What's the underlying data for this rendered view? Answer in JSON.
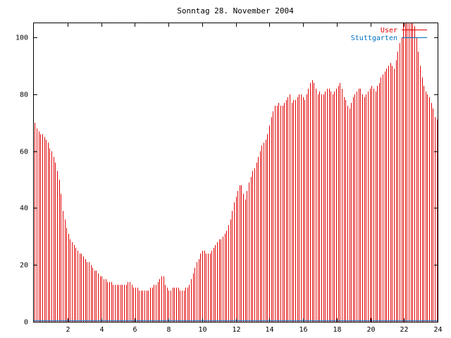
{
  "chart_data": {
    "type": "bar",
    "title": "Sonntag 28. November 2004",
    "xlabel": "",
    "ylabel": "",
    "xlim": [
      0,
      24
    ],
    "ylim": [
      0,
      105
    ],
    "xticks": [
      2,
      4,
      6,
      8,
      10,
      12,
      14,
      16,
      18,
      20,
      22,
      24
    ],
    "yticks": [
      0,
      20,
      40,
      60,
      80,
      100
    ],
    "grid": false,
    "legend_position": "top-right",
    "series": [
      {
        "name": "User",
        "color": "#e00000",
        "sample_interval_hours": 0.0833,
        "values": [
          70,
          68,
          67,
          66,
          66,
          65,
          64,
          63,
          61,
          60,
          58,
          56,
          53,
          50,
          45,
          39,
          36,
          33,
          31,
          29,
          28,
          27,
          26,
          25,
          24,
          24,
          23,
          22,
          21,
          21,
          20,
          19,
          18,
          18,
          17,
          16,
          16,
          15,
          15,
          14,
          14,
          14,
          13,
          13,
          13,
          13,
          13,
          13,
          13,
          13,
          14,
          14,
          13,
          12,
          12,
          12,
          11,
          11,
          11,
          11,
          11,
          11,
          12,
          12,
          13,
          13,
          14,
          15,
          16,
          16,
          13,
          12,
          11,
          11,
          12,
          12,
          12,
          12,
          11,
          11,
          11,
          12,
          12,
          13,
          15,
          17,
          19,
          21,
          22,
          24,
          25,
          25,
          24,
          24,
          24,
          25,
          26,
          27,
          28,
          29,
          29,
          30,
          31,
          32,
          34,
          36,
          39,
          42,
          44,
          46,
          48,
          48,
          45,
          43,
          46,
          49,
          51,
          53,
          54,
          56,
          58,
          60,
          62,
          63,
          64,
          66,
          69,
          72,
          74,
          76,
          76,
          77,
          76,
          76,
          77,
          78,
          79,
          80,
          77,
          78,
          78,
          79,
          80,
          80,
          79,
          78,
          80,
          82,
          84,
          85,
          84,
          82,
          80,
          81,
          80,
          80,
          81,
          82,
          82,
          81,
          80,
          81,
          82,
          83,
          84,
          82,
          79,
          78,
          76,
          75,
          77,
          79,
          80,
          81,
          82,
          82,
          80,
          79,
          80,
          81,
          82,
          83,
          82,
          81,
          83,
          84,
          86,
          87,
          88,
          89,
          90,
          91,
          90,
          89,
          92,
          95,
          98,
          100,
          105,
          105,
          105,
          105,
          105,
          105,
          104,
          100,
          95,
          90,
          86,
          83,
          81,
          80,
          79,
          77,
          75,
          72,
          71
        ]
      },
      {
        "name": "Stuttgarten",
        "color": "#0070c0",
        "values": [
          0
        ]
      }
    ]
  }
}
